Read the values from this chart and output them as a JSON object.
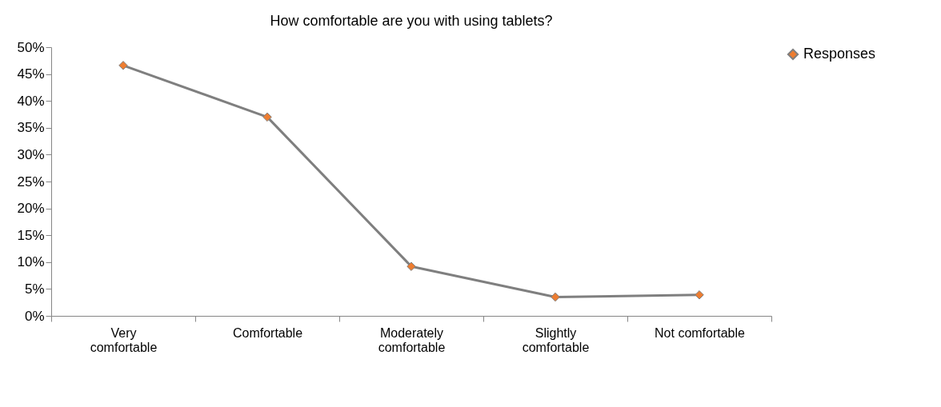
{
  "chart_data": {
    "type": "line",
    "title": "How comfortable are you with using tablets?",
    "categories": [
      "Very comfortable",
      "Comfortable",
      "Moderately comfortable",
      "Slightly comfortable",
      "Not comfortable"
    ],
    "series": [
      {
        "name": "Responses",
        "color": "#7f7f7f",
        "colors": [
          "#ed7d31",
          "#ed7d31",
          "#ed7d31",
          "#ed7d31",
          "#ed7d31"
        ],
        "values": [
          46.6,
          37.0,
          9.2,
          3.5,
          3.9
        ]
      }
    ],
    "ylim": [
      0,
      50
    ],
    "yticks": [
      {
        "value": 0,
        "label": "0%"
      },
      {
        "value": 5,
        "label": "5%"
      },
      {
        "value": 10,
        "label": "10%"
      },
      {
        "value": 15,
        "label": "15%"
      },
      {
        "value": 20,
        "label": "20%"
      },
      {
        "value": 25,
        "label": "25%"
      },
      {
        "value": 30,
        "label": "30%"
      },
      {
        "value": 35,
        "label": "35%"
      },
      {
        "value": 40,
        "label": "40%"
      },
      {
        "value": 45,
        "label": "45%"
      },
      {
        "value": 50,
        "label": "50%"
      }
    ],
    "grid": false,
    "legend": "right",
    "marker": "diamond",
    "line_style": "solid"
  }
}
